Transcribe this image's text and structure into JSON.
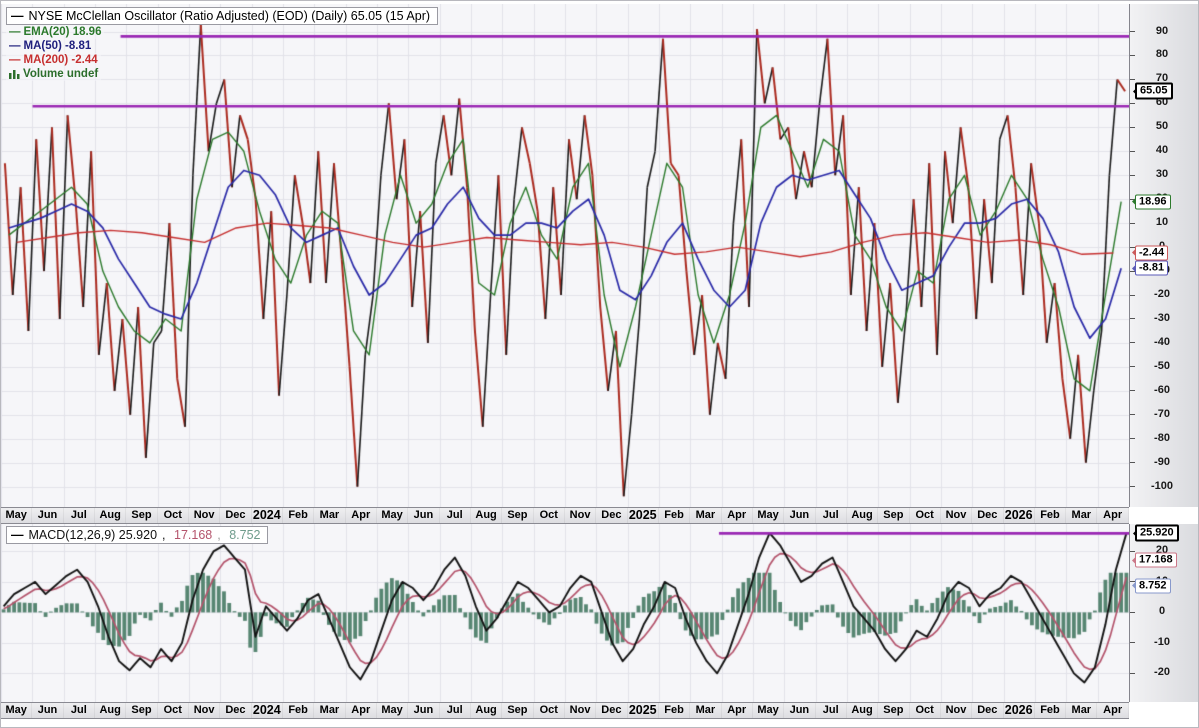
{
  "ui": {
    "main_legend": {
      "title": "NYSE McClellan Oscillator (Ratio Adjusted) (EOD) (Daily) 65.05 (15 Apr)",
      "title_dash": "—",
      "items": [
        {
          "label": "EMA(20) 18.96",
          "color": "#2c7a2c"
        },
        {
          "label": "MA(50) -8.81",
          "color": "#20207e"
        },
        {
          "label": "MA(200) -2.44",
          "color": "#c62f2f"
        },
        {
          "label": "Volume undef",
          "color": "#2c6e2c",
          "icon": "volume-bars-icon"
        }
      ]
    },
    "macd_legend": {
      "dash": "—",
      "parts": [
        {
          "text": "MACD(12,26,9) 25.920",
          "color": "#111111"
        },
        {
          "text": ", ",
          "color": "#111111"
        },
        {
          "text": "17.168",
          "color": "#b4546c"
        },
        {
          "text": ", ",
          "color": "#999999"
        },
        {
          "text": "8.752",
          "color": "#6f9c8c"
        }
      ]
    },
    "colors": {
      "plot_bg": "#f6f6f9",
      "grid": "#e2e2ea",
      "annotation_purple": "#9a28b4",
      "osc_up": "#1a1a1a",
      "osc_down": "#ab2b20"
    }
  },
  "chart_data": [
    {
      "type": "line",
      "title": "NYSE McClellan Oscillator (Ratio Adjusted) (EOD) (Daily) 65.05 (15 Apr)",
      "last_value": 65.05,
      "last_date": "15 Apr",
      "x_months": [
        "May",
        "Jun",
        "Jul",
        "Aug",
        "Sep",
        "Oct",
        "Nov",
        "Dec",
        "2024",
        "Feb",
        "Mar",
        "Apr",
        "May",
        "Jun",
        "Jul",
        "Aug",
        "Sep",
        "Oct",
        "Nov",
        "Dec",
        "2025",
        "Feb",
        "Mar",
        "Apr",
        "May",
        "Jun",
        "Jul",
        "Aug",
        "Sep",
        "Oct",
        "Nov",
        "Dec",
        "2026",
        "Feb",
        "Mar",
        "Apr"
      ],
      "ylim": [
        -108.5,
        101.5
      ],
      "y_ticks": [
        90,
        80,
        70,
        60,
        50,
        40,
        30,
        20,
        10,
        0,
        -10,
        -20,
        -30,
        -40,
        -50,
        -60,
        -70,
        -80,
        -90,
        -100
      ],
      "grid": true,
      "series": [
        {
          "name": "McClellan Oscillator",
          "style": "daily line, up=black down=red",
          "values": [
            35,
            -20,
            25,
            -35,
            45,
            -10,
            50,
            -30,
            55,
            20,
            -25,
            40,
            -45,
            -15,
            -60,
            -30,
            -70,
            -25,
            -88,
            -40,
            -35,
            10,
            -55,
            -75,
            30,
            93,
            40,
            60,
            70,
            25,
            55,
            45,
            20,
            -30,
            15,
            -62,
            -20,
            30,
            10,
            -15,
            40,
            -15,
            35,
            -5,
            -50,
            -100,
            -45,
            -20,
            30,
            60,
            20,
            45,
            -25,
            15,
            -40,
            35,
            55,
            30,
            62,
            25,
            -35,
            -75,
            -20,
            30,
            -45,
            20,
            50,
            35,
            15,
            -30,
            25,
            -20,
            45,
            20,
            55,
            30,
            -25,
            -60,
            -35,
            -104,
            -70,
            -30,
            25,
            40,
            87,
            35,
            30,
            -10,
            -45,
            -20,
            -70,
            -40,
            -55,
            10,
            45,
            -25,
            91,
            60,
            75,
            45,
            50,
            20,
            40,
            25,
            60,
            87,
            30,
            55,
            -20,
            25,
            -35,
            10,
            -50,
            -15,
            -65,
            -30,
            20,
            -25,
            35,
            -45,
            40,
            10,
            50,
            25,
            -30,
            20,
            -15,
            45,
            55,
            25,
            -20,
            35,
            10,
            -40,
            -15,
            -55,
            -80,
            -45,
            -90,
            -60,
            -35,
            30,
            70,
            65.05
          ]
        },
        {
          "name": "EMA(20)",
          "color": "#2c7a2c",
          "last": 18.96,
          "values": [
            5,
            10,
            15,
            20,
            25,
            18,
            -10,
            -25,
            -35,
            -40,
            -30,
            -35,
            20,
            45,
            48,
            40,
            15,
            -5,
            -15,
            5,
            15,
            10,
            -35,
            -45,
            5,
            30,
            10,
            18,
            35,
            45,
            -15,
            -20,
            10,
            25,
            5,
            -5,
            25,
            35,
            -20,
            -50,
            -25,
            5,
            35,
            25,
            -20,
            -40,
            -20,
            10,
            50,
            55,
            40,
            25,
            45,
            40,
            5,
            -5,
            -25,
            -35,
            -10,
            -15,
            20,
            30,
            5,
            15,
            30,
            20,
            -5,
            -25,
            -55,
            -60,
            -20,
            18.96
          ]
        },
        {
          "name": "MA(50)",
          "color": "#2a2aa8",
          "last": -8.81,
          "values": [
            8,
            10,
            12,
            15,
            18,
            15,
            8,
            -5,
            -15,
            -25,
            -28,
            -30,
            -15,
            5,
            25,
            32,
            30,
            22,
            8,
            2,
            5,
            8,
            -8,
            -20,
            -15,
            -5,
            5,
            8,
            18,
            25,
            12,
            5,
            5,
            10,
            10,
            8,
            15,
            20,
            5,
            -18,
            -22,
            -12,
            2,
            10,
            -5,
            -18,
            -25,
            -18,
            10,
            25,
            30,
            28,
            30,
            32,
            22,
            12,
            -5,
            -18,
            -15,
            -12,
            0,
            10,
            10,
            12,
            18,
            20,
            12,
            -2,
            -25,
            -38,
            -30,
            -8.81
          ]
        },
        {
          "name": "MA(200)",
          "color": "#c62f2f",
          "last": -2.44,
          "values": [
            2,
            4,
            6,
            7,
            6,
            4,
            2,
            8,
            10,
            9,
            8,
            5,
            2,
            0,
            2,
            4,
            3,
            2,
            1,
            2,
            0,
            -3,
            -2,
            0,
            -2,
            -4,
            -2,
            2,
            5,
            6,
            4,
            2,
            3,
            1,
            -3,
            -2.44
          ]
        }
      ],
      "hlines": [
        {
          "value": 88,
          "x_start_frac": 0.106,
          "color": "#9a28b4"
        },
        {
          "value": 58.8,
          "x_start_frac": 0.028,
          "color": "#9a28b4"
        }
      ],
      "price_labels": [
        {
          "text": "65.05",
          "value": 65.05,
          "border": "#000000",
          "bold": true
        },
        {
          "text": "18.96",
          "value": 18.96,
          "border": "#2c7a2c"
        },
        {
          "text": "-2.44",
          "value": -2.44,
          "border": "#cc5a5a"
        },
        {
          "text": "-8.81",
          "value": -8.81,
          "border": "#5a5ab8"
        }
      ]
    },
    {
      "type": "macd",
      "title": "MACD(12,26,9) 25.920, 17.168, 8.752",
      "macd_last": 25.92,
      "signal_last": 17.168,
      "hist_last": 8.752,
      "ylim": [
        -29.4,
        29
      ],
      "y_ticks": [
        20,
        10,
        0,
        -10,
        -20
      ],
      "macd_color": "#131313",
      "signal_color": "#b4546c",
      "hist_color": "#578672",
      "values": [
        2,
        6,
        8,
        10,
        6,
        9,
        12,
        14,
        10,
        2,
        -8,
        -16,
        -19,
        -15,
        -18,
        -12,
        -16,
        -10,
        4,
        14,
        20,
        22,
        18,
        14,
        -8,
        2,
        -2,
        -6,
        -2,
        4,
        6,
        -2,
        -10,
        -18,
        -22,
        -16,
        -6,
        4,
        10,
        8,
        4,
        8,
        14,
        18,
        12,
        2,
        -6,
        -2,
        4,
        10,
        8,
        4,
        0,
        2,
        8,
        12,
        10,
        0,
        -10,
        -16,
        -12,
        -4,
        2,
        10,
        8,
        -2,
        -10,
        -16,
        -20,
        -14,
        -4,
        6,
        18,
        26,
        22,
        16,
        10,
        12,
        16,
        18,
        10,
        2,
        -2,
        -6,
        -12,
        -16,
        -12,
        -6,
        -8,
        -2,
        6,
        10,
        8,
        2,
        6,
        8,
        12,
        10,
        4,
        -2,
        -8,
        -14,
        -20,
        -23,
        -18,
        -4,
        14,
        25.92
      ],
      "hlines": [
        {
          "value": 25.92,
          "x_start_frac": 0.6365,
          "color": "#9a28b4"
        }
      ],
      "price_labels": [
        {
          "text": "25.920",
          "value": 25.92,
          "border": "#000000",
          "bold": true
        },
        {
          "text": "17.168",
          "value": 17.168,
          "border": "#cc7788"
        },
        {
          "text": "8.752",
          "value": 8.752,
          "border": "#8899cc"
        }
      ]
    }
  ]
}
